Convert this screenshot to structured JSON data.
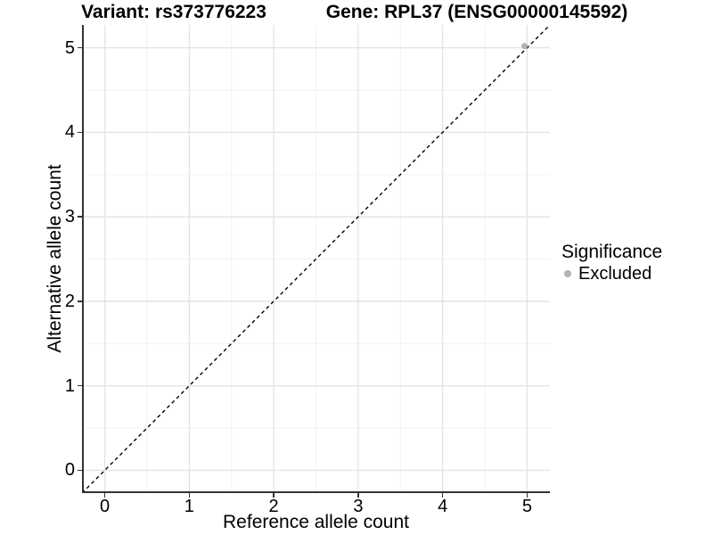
{
  "chart_data": {
    "type": "scatter",
    "title_left": "Variant: rs373776223",
    "title_right": "Gene: RPL37 (ENSG00000145592)",
    "xlabel": "Reference allele count",
    "ylabel": "Alternative allele count",
    "xlim": [
      -0.27,
      5.27
    ],
    "ylim": [
      -0.27,
      5.27
    ],
    "xticks": [
      0,
      1,
      2,
      3,
      4,
      5
    ],
    "yticks": [
      0,
      1,
      2,
      3,
      4,
      5
    ],
    "minor_xticks": [
      0.5,
      1.5,
      2.5,
      3.5,
      4.5
    ],
    "minor_yticks": [
      0.5,
      1.5,
      2.5,
      3.5,
      4.5
    ],
    "grid": "major+minor",
    "reference_line": {
      "type": "identity",
      "slope": 1,
      "intercept": 0,
      "style": "dashed",
      "color": "#000000"
    },
    "series": [
      {
        "name": "Excluded",
        "marker": "circle",
        "color": "#b2b2b2",
        "points": [
          [
            4.97,
            5.02
          ]
        ]
      }
    ],
    "legend": {
      "title": "Significance",
      "position": "right",
      "items": [
        {
          "label": "Excluded",
          "color": "#b2b2b2"
        }
      ]
    }
  },
  "colors": {
    "background": "#ffffff",
    "axis": "#333333",
    "tick": "#333333",
    "grid_major": "#e4e4e4",
    "grid_minor": "#f2f2f2",
    "text": "#000000"
  }
}
